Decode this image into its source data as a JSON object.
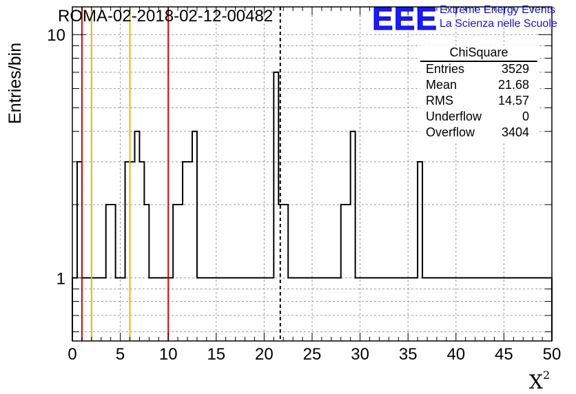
{
  "chart_data": {
    "type": "histogram",
    "title": "ROMA-02-2018-02-12-00482",
    "xlabel": "X",
    "xlabel_superscript": "2",
    "ylabel": "Entries/bin",
    "xlim": [
      0,
      50
    ],
    "ylim": [
      0.55,
      13
    ],
    "ylog": true,
    "grid": true,
    "bin_width": 0.5,
    "x_ticks": [
      "0",
      "5",
      "10",
      "15",
      "20",
      "25",
      "30",
      "35",
      "40",
      "45",
      "50"
    ],
    "y_ticks": [
      "1",
      "10"
    ],
    "bin_values": [
      1,
      3,
      1,
      1,
      1,
      1,
      1,
      2,
      2,
      1,
      1,
      3,
      3,
      4,
      3,
      2,
      1,
      1,
      1,
      1,
      1,
      2,
      2,
      3,
      3,
      4,
      1,
      1,
      1,
      1,
      1,
      1,
      1,
      1,
      1,
      1,
      1,
      1,
      1,
      1,
      1,
      1,
      7,
      2,
      2,
      1,
      1,
      1,
      1,
      1,
      1,
      1,
      1,
      1,
      1,
      1,
      2,
      2,
      4,
      1,
      1,
      1,
      1,
      1,
      1,
      1,
      1,
      1,
      1,
      1,
      1,
      1,
      3,
      1,
      1,
      1,
      1,
      1,
      1,
      1,
      1,
      1,
      1,
      1,
      1,
      1,
      1,
      1,
      1,
      1,
      1,
      1,
      1,
      1,
      1,
      1,
      1,
      1,
      1,
      1
    ],
    "vertical_lines": [
      {
        "x": 1,
        "color": "#dd0000",
        "style": "solid"
      },
      {
        "x": 2,
        "color": "#f0b400",
        "style": "solid"
      },
      {
        "x": 6,
        "color": "#f0b400",
        "style": "solid"
      },
      {
        "x": 10,
        "color": "#dd0000",
        "style": "solid"
      },
      {
        "x": 21.68,
        "color": "#000000",
        "style": "dashed"
      }
    ],
    "stats": {
      "title": "ChiSquare",
      "rows": [
        {
          "label": "Entries",
          "value": "3529"
        },
        {
          "label": "Mean",
          "value": "21.68"
        },
        {
          "label": "RMS",
          "value": "14.57"
        },
        {
          "label": "Underflow",
          "value": "0"
        },
        {
          "label": "Overflow",
          "value": "3404"
        }
      ]
    }
  },
  "logo": {
    "mark": "EEE",
    "line1": "Extreme Energy Events",
    "line2": "La Scienza nelle Scuole",
    "color": "#1010ee"
  }
}
